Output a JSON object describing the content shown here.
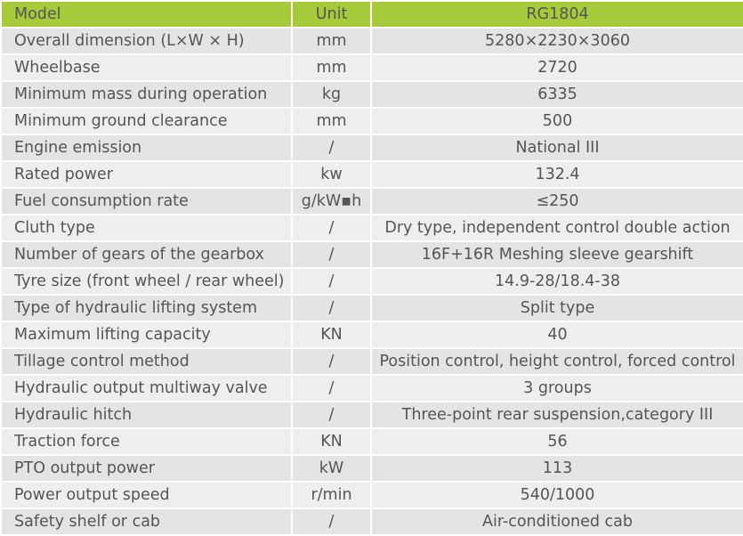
{
  "header": {
    "model": "Model",
    "unit": "Unit",
    "value": "RG1804"
  },
  "rows": [
    {
      "param": "Overall dimension (L×W × H)",
      "unit": "mm",
      "value": "5280×2230×3060"
    },
    {
      "param": "Wheelbase",
      "unit": "mm",
      "value": "2720"
    },
    {
      "param": "Minimum mass during operation",
      "unit": "kg",
      "value": "6335"
    },
    {
      "param": "Minimum ground clearance",
      "unit": "mm",
      "value": "500"
    },
    {
      "param": "Engine emission",
      "unit": "/",
      "value": "National III"
    },
    {
      "param": "Rated power",
      "unit": "kw",
      "value": "132.4"
    },
    {
      "param": "Fuel consumption rate",
      "unit": "g/kW▪h",
      "value": "≤250"
    },
    {
      "param": "Cluth type",
      "unit": "/",
      "value": "Dry type, independent control double action"
    },
    {
      "param": "Number of gears of the gearbox",
      "unit": "/",
      "value": "16F+16R Meshing sleeve gearshift"
    },
    {
      "param": "Tyre size (front wheel / rear wheel)",
      "unit": "/",
      "value": "14.9-28/18.4-38"
    },
    {
      "param": "Type of hydraulic lifting system",
      "unit": "/",
      "value": "Split type"
    },
    {
      "param": "Maximum lifting capacity",
      "unit": "KN",
      "value": "40"
    },
    {
      "param": "Tillage control method",
      "unit": "/",
      "value": "Position control, height control, forced control"
    },
    {
      "param": "Hydraulic output multiway valve",
      "unit": "/",
      "value": "3 groups"
    },
    {
      "param": "Hydraulic hitch",
      "unit": "/",
      "value": "Three-point rear suspension,category III"
    },
    {
      "param": "Traction force",
      "unit": "KN",
      "value": "56"
    },
    {
      "param": "PTO output power",
      "unit": "kW",
      "value": "113"
    },
    {
      "param": "Power output speed",
      "unit": "r/min",
      "value": "540/1000"
    },
    {
      "param": "Safety shelf or cab",
      "unit": "/",
      "value": "Air-conditioned cab"
    }
  ],
  "colors": {
    "header": "#a6ca3a",
    "row_odd": "#e4e4e4",
    "row_even": "#eeeeee",
    "text": "#555555"
  }
}
